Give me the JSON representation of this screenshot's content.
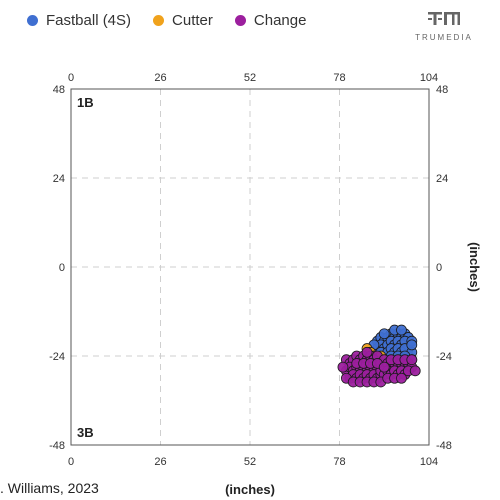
{
  "brand": {
    "name": "TRUMEDIA",
    "logo_icon": "trumedia-logo-icon"
  },
  "footer_note": ". Williams, 2023",
  "chart_data": {
    "type": "scatter",
    "xlabel": "(inches)",
    "ylabel": "(inches)",
    "xlim": [
      0,
      104
    ],
    "ylim": [
      -48,
      48
    ],
    "x_ticks": [
      0,
      26,
      52,
      78,
      104
    ],
    "y_ticks": [
      -48,
      -24,
      0,
      24,
      48
    ],
    "x_tick_labels": [
      "0",
      "26",
      "52",
      "78",
      "104"
    ],
    "y_tick_labels": [
      "-48",
      "-24",
      "0",
      "24",
      "48"
    ],
    "grid": true,
    "legend_position": "top-left",
    "corner_labels": {
      "top_left": "1B",
      "bottom_left": "3B"
    },
    "series": [
      {
        "name": "Fastball (4S)",
        "color": "#3f6fd1",
        "points": [
          [
            89,
            -20
          ],
          [
            90,
            -19
          ],
          [
            91,
            -20
          ],
          [
            92,
            -19
          ],
          [
            93,
            -18
          ],
          [
            94,
            -19
          ],
          [
            95,
            -18
          ],
          [
            96,
            -19
          ],
          [
            97,
            -18
          ],
          [
            98,
            -19
          ],
          [
            89,
            -22
          ],
          [
            90,
            -21
          ],
          [
            91,
            -22
          ],
          [
            92,
            -21
          ],
          [
            93,
            -20
          ],
          [
            94,
            -21
          ],
          [
            95,
            -20
          ],
          [
            96,
            -21
          ],
          [
            97,
            -20
          ],
          [
            98,
            -22
          ],
          [
            90,
            -23
          ],
          [
            91,
            -24
          ],
          [
            92,
            -23
          ],
          [
            93,
            -22
          ],
          [
            94,
            -23
          ],
          [
            95,
            -22
          ],
          [
            96,
            -23
          ],
          [
            97,
            -22
          ],
          [
            98,
            -24
          ],
          [
            99,
            -23
          ],
          [
            92,
            -25
          ],
          [
            93,
            -24
          ],
          [
            94,
            -25
          ],
          [
            95,
            -24
          ],
          [
            96,
            -25
          ],
          [
            97,
            -24
          ],
          [
            98,
            -26
          ],
          [
            99,
            -25
          ],
          [
            95,
            -26
          ],
          [
            97,
            -27
          ],
          [
            88,
            -21
          ],
          [
            91,
            -18
          ],
          [
            94,
            -17
          ],
          [
            96,
            -17
          ],
          [
            99,
            -20
          ],
          [
            99,
            -21
          ],
          [
            93,
            -26
          ],
          [
            96,
            -27
          ]
        ]
      },
      {
        "name": "Cutter",
        "color": "#f0a21c",
        "points": [
          [
            86,
            -22
          ],
          [
            87,
            -23
          ],
          [
            88,
            -24
          ],
          [
            89,
            -25
          ],
          [
            87,
            -26
          ],
          [
            90,
            -24
          ],
          [
            91,
            -27
          ],
          [
            88,
            -27
          ]
        ]
      },
      {
        "name": "Change",
        "color": "#9c1f9e",
        "points": [
          [
            80,
            -25
          ],
          [
            81,
            -26
          ],
          [
            82,
            -25
          ],
          [
            83,
            -24
          ],
          [
            84,
            -25
          ],
          [
            85,
            -24
          ],
          [
            86,
            -25
          ],
          [
            87,
            -24
          ],
          [
            88,
            -25
          ],
          [
            89,
            -24
          ],
          [
            80,
            -28
          ],
          [
            81,
            -27
          ],
          [
            82,
            -28
          ],
          [
            83,
            -27
          ],
          [
            84,
            -28
          ],
          [
            85,
            -27
          ],
          [
            86,
            -28
          ],
          [
            87,
            -27
          ],
          [
            88,
            -28
          ],
          [
            89,
            -27
          ],
          [
            81,
            -30
          ],
          [
            82,
            -29
          ],
          [
            83,
            -30
          ],
          [
            84,
            -29
          ],
          [
            85,
            -30
          ],
          [
            86,
            -29
          ],
          [
            87,
            -30
          ],
          [
            88,
            -29
          ],
          [
            89,
            -30
          ],
          [
            90,
            -29
          ],
          [
            90,
            -26
          ],
          [
            91,
            -25
          ],
          [
            92,
            -26
          ],
          [
            93,
            -27
          ],
          [
            94,
            -26
          ],
          [
            95,
            -27
          ],
          [
            96,
            -26
          ],
          [
            97,
            -27
          ],
          [
            98,
            -26
          ],
          [
            99,
            -27
          ],
          [
            90,
            -28
          ],
          [
            91,
            -29
          ],
          [
            92,
            -28
          ],
          [
            93,
            -29
          ],
          [
            94,
            -28
          ],
          [
            95,
            -29
          ],
          [
            96,
            -28
          ],
          [
            97,
            -29
          ],
          [
            98,
            -28
          ],
          [
            100,
            -28
          ],
          [
            79,
            -27
          ],
          [
            80,
            -30
          ],
          [
            82,
            -31
          ],
          [
            84,
            -31
          ],
          [
            86,
            -31
          ],
          [
            88,
            -31
          ],
          [
            90,
            -31
          ],
          [
            92,
            -30
          ],
          [
            94,
            -30
          ],
          [
            96,
            -30
          ],
          [
            83,
            -26
          ],
          [
            85,
            -26
          ],
          [
            87,
            -26
          ],
          [
            89,
            -26
          ],
          [
            91,
            -27
          ],
          [
            93,
            -25
          ],
          [
            95,
            -25
          ],
          [
            97,
            -25
          ],
          [
            99,
            -25
          ],
          [
            86,
            -23
          ]
        ]
      }
    ]
  }
}
